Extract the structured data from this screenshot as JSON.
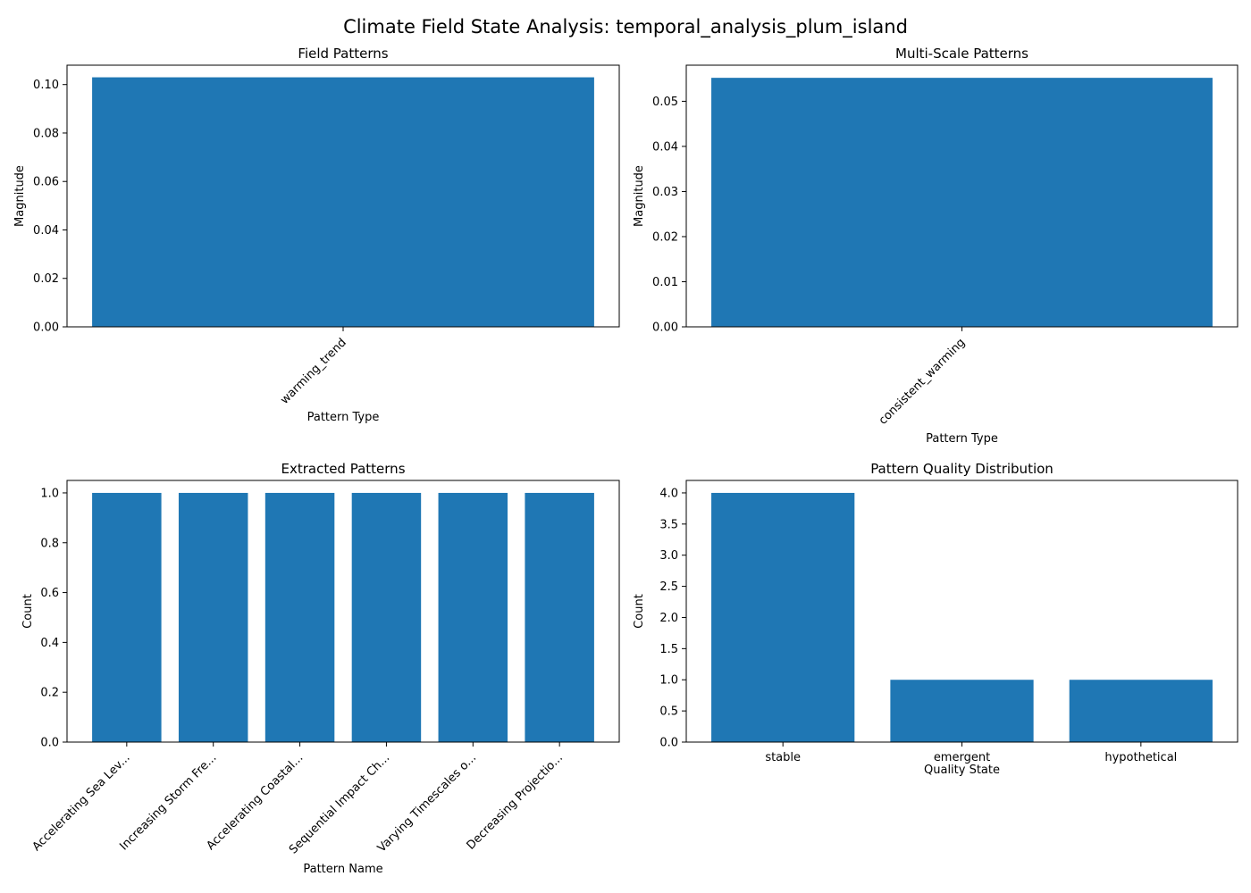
{
  "figure": {
    "suptitle": "Climate Field State Analysis: temporal_analysis_plum_island",
    "bar_color": "#1f77b4"
  },
  "chart_data": [
    {
      "type": "bar",
      "title": "Field Patterns",
      "xlabel": "Pattern Type",
      "ylabel": "Magnitude",
      "categories": [
        "warming_trend"
      ],
      "values": [
        0.103
      ],
      "ylim": [
        0,
        0.108
      ],
      "yticks": [
        0.0,
        0.02,
        0.04,
        0.06,
        0.08,
        0.1
      ],
      "ytick_labels": [
        "0.00",
        "0.02",
        "0.04",
        "0.06",
        "0.08",
        "0.10"
      ],
      "xtick_rotation": -45,
      "grid": false,
      "legend": "none"
    },
    {
      "type": "bar",
      "title": "Multi-Scale Patterns",
      "xlabel": "Pattern Type",
      "ylabel": "Magnitude",
      "categories": [
        "consistent_warming"
      ],
      "values": [
        0.0552
      ],
      "ylim": [
        0,
        0.058
      ],
      "yticks": [
        0.0,
        0.01,
        0.02,
        0.03,
        0.04,
        0.05
      ],
      "ytick_labels": [
        "0.00",
        "0.01",
        "0.02",
        "0.03",
        "0.04",
        "0.05"
      ],
      "xtick_rotation": -45,
      "grid": false,
      "legend": "none"
    },
    {
      "type": "bar",
      "title": "Extracted Patterns",
      "xlabel": "Pattern Name",
      "ylabel": "Count",
      "categories": [
        "Accelerating Sea Lev...",
        "Increasing Storm Fre...",
        "Accelerating Coastal...",
        "Sequential Impact Ch...",
        "Varying Timescales o...",
        "Decreasing Projectio..."
      ],
      "values": [
        1,
        1,
        1,
        1,
        1,
        1
      ],
      "ylim": [
        0,
        1.05
      ],
      "yticks": [
        0.0,
        0.2,
        0.4,
        0.6,
        0.8,
        1.0
      ],
      "ytick_labels": [
        "0.0",
        "0.2",
        "0.4",
        "0.6",
        "0.8",
        "1.0"
      ],
      "xtick_rotation": -45,
      "grid": false,
      "legend": "none"
    },
    {
      "type": "bar",
      "title": "Pattern Quality Distribution",
      "xlabel": "Quality State",
      "ylabel": "Count",
      "categories": [
        "stable",
        "emergent",
        "hypothetical"
      ],
      "values": [
        4,
        1,
        1
      ],
      "ylim": [
        0,
        4.2
      ],
      "yticks": [
        0.0,
        0.5,
        1.0,
        1.5,
        2.0,
        2.5,
        3.0,
        3.5,
        4.0
      ],
      "ytick_labels": [
        "0.0",
        "0.5",
        "1.0",
        "1.5",
        "2.0",
        "2.5",
        "3.0",
        "3.5",
        "4.0"
      ],
      "xtick_rotation": 0,
      "grid": false,
      "legend": "none"
    }
  ]
}
